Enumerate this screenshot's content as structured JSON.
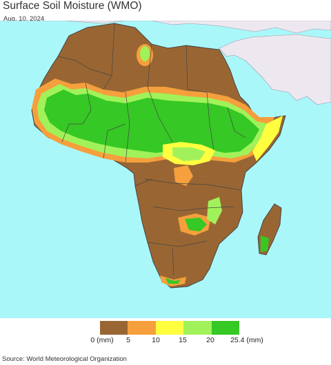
{
  "title": "Surface Soil Moisture (WMO)",
  "date": "Aug. 10, 2024",
  "source": "Source: World Meteorological Organization",
  "colors": {
    "ocean": "#aaf7fa",
    "non_africa_land": "#ede8f0",
    "border": "#444444"
  },
  "legend": {
    "bins": [
      {
        "color": "#996633"
      },
      {
        "color": "#f5a03c"
      },
      {
        "color": "#ffff40"
      },
      {
        "color": "#a1f25a"
      },
      {
        "color": "#36c824"
      }
    ],
    "tick_labels": [
      "0 (mm)",
      "5",
      "10",
      "15",
      "20",
      "25.4 (mm)"
    ]
  }
}
